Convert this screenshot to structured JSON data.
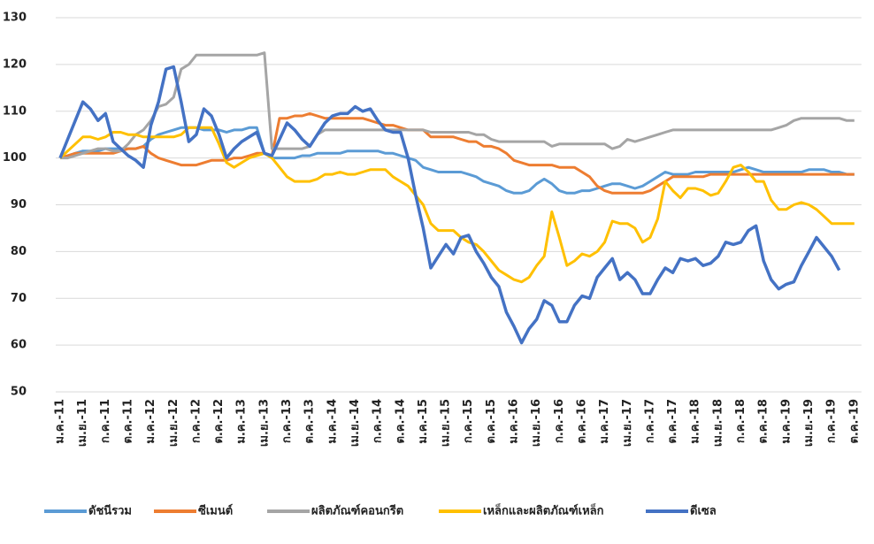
{
  "chart_data": {
    "type": "line",
    "ylim": [
      50,
      130
    ],
    "yticks": [
      50,
      60,
      70,
      80,
      90,
      100,
      110,
      120,
      130
    ],
    "grid": true,
    "legend": "bottom",
    "categories": [
      "ม.ค.-11",
      null,
      null,
      "เม.ย.-11",
      null,
      null,
      "ก.ค.-11",
      null,
      null,
      "ต.ค.-11",
      null,
      null,
      "ม.ค.-12",
      null,
      null,
      "เม.ย.-12",
      null,
      null,
      "ก.ค.-12",
      null,
      null,
      "ต.ค.-12",
      null,
      null,
      "ม.ค.-13",
      null,
      null,
      "เม.ย.-13",
      null,
      null,
      "ก.ค.-13",
      null,
      null,
      "ต.ค.-13",
      null,
      null,
      "ม.ค.-14",
      null,
      null,
      "เม.ย.-14",
      null,
      null,
      "ก.ค.-14",
      null,
      null,
      "ต.ค.-14",
      null,
      null,
      "ม.ค.-15",
      null,
      null,
      "เม.ย.-15",
      null,
      null,
      "ก.ค.-15",
      null,
      null,
      "ต.ค.-15",
      null,
      null,
      "ม.ค.-16",
      null,
      null,
      "เม.ย.-16",
      null,
      null,
      "ก.ค.-16",
      null,
      null,
      "ต.ค.-16",
      null,
      null,
      "ม.ค.-17",
      null,
      null,
      "เม.ย.-17",
      null,
      null,
      "ก.ค.-17",
      null,
      null,
      "ต.ค.-17",
      null,
      null,
      "ม.ค.-18",
      null,
      null,
      "เม.ย.-18",
      null,
      null,
      "ก.ค.-18",
      null,
      null,
      "ต.ค.-18",
      null,
      null,
      "ม.ค.-19",
      null,
      null,
      "เม.ย.-19",
      null,
      null,
      "ก.ค.-19",
      null,
      null,
      "ต.ค.-19"
    ],
    "series": [
      {
        "name": "ดัชนีรวม",
        "color": "#5b9bd5",
        "values": [
          100,
          100.5,
          101,
          101.5,
          101.5,
          101.5,
          102,
          102,
          102,
          102,
          102,
          102.5,
          104,
          105,
          105.5,
          106,
          106.5,
          106.5,
          106.5,
          106,
          106,
          106,
          105.5,
          106,
          106,
          106.5,
          106.5,
          101,
          100,
          100,
          100,
          100,
          100.5,
          100.5,
          101,
          101,
          101,
          101,
          101.5,
          101.5,
          101.5,
          101.5,
          101.5,
          101,
          101,
          100.5,
          100,
          99.5,
          98,
          97.5,
          97,
          97,
          97,
          97,
          96.5,
          96,
          95,
          94.5,
          94,
          93,
          92.5,
          92.5,
          93,
          94.5,
          95.5,
          94.5,
          93,
          92.5,
          92.5,
          93,
          93,
          93.5,
          94,
          94.5,
          94.5,
          94,
          93.5,
          94,
          95,
          96,
          97,
          96.5,
          96.5,
          96.5,
          97,
          97,
          97,
          97,
          97,
          97,
          97.5,
          98,
          97.5,
          97,
          97,
          97,
          97,
          97,
          97,
          97.5,
          97.5,
          97.5,
          97,
          97,
          96.5,
          96.5
        ]
      },
      {
        "name": "ซีเมนต์",
        "color": "#ed7d31",
        "values": [
          100,
          100.5,
          101,
          101,
          101,
          101,
          101,
          101,
          101.5,
          102,
          102,
          102.5,
          101,
          100,
          99.5,
          99,
          98.5,
          98.5,
          98.5,
          99,
          99.5,
          99.5,
          99.5,
          100,
          100,
          100.5,
          101,
          101,
          100.5,
          108.5,
          108.5,
          109,
          109,
          109.5,
          109,
          108.5,
          108.5,
          108.5,
          108.5,
          108.5,
          108.5,
          108,
          107.5,
          107,
          107,
          106.5,
          106,
          106,
          106,
          104.5,
          104.5,
          104.5,
          104.5,
          104,
          103.5,
          103.5,
          102.5,
          102.5,
          102,
          101,
          99.5,
          99,
          98.5,
          98.5,
          98.5,
          98.5,
          98,
          98,
          98,
          97,
          96,
          94,
          93,
          92.5,
          92.5,
          92.5,
          92.5,
          92.5,
          93,
          94,
          95,
          96,
          96,
          96,
          96,
          96,
          96.5,
          96.5,
          96.5,
          96.5,
          96.5,
          96.5,
          96.5,
          96.5,
          96.5,
          96.5,
          96.5,
          96.5,
          96.5,
          96.5,
          96.5,
          96.5,
          96.5,
          96.5,
          96.5,
          96.5
        ]
      },
      {
        "name": "ผลิตภัณฑ์คอนกรีต",
        "color": "#a5a5a5",
        "values": [
          100,
          100,
          100.5,
          101,
          101.5,
          102,
          102,
          101.5,
          101.5,
          103,
          105,
          106,
          108,
          111,
          111.5,
          113,
          119,
          120,
          122,
          122,
          122,
          122,
          122,
          122,
          122,
          122,
          122,
          122.5,
          102,
          102,
          102,
          102,
          102,
          102.5,
          105,
          106,
          106,
          106,
          106,
          106,
          106,
          106,
          106,
          106,
          106,
          106,
          106,
          106,
          106,
          105.5,
          105.5,
          105.5,
          105.5,
          105.5,
          105.5,
          105,
          105,
          104,
          103.5,
          103.5,
          103.5,
          103.5,
          103.5,
          103.5,
          103.5,
          102.5,
          103,
          103,
          103,
          103,
          103,
          103,
          103,
          102,
          102.5,
          104,
          103.5,
          104,
          104.5,
          105,
          105.5,
          106,
          106,
          106,
          106,
          106,
          106,
          106,
          106,
          106,
          106,
          106,
          106,
          106,
          106,
          106.5,
          107,
          108,
          108.5,
          108.5,
          108.5,
          108.5,
          108.5,
          108.5,
          108,
          108
        ]
      },
      {
        "name": "เหล็กและผลิตภัณฑ์เหล็ก",
        "color": "#ffc000",
        "values": [
          100,
          101.5,
          103,
          104.5,
          104.5,
          104,
          104.5,
          105.5,
          105.5,
          105,
          105,
          104.5,
          104.5,
          104.5,
          104.5,
          104.5,
          105,
          106.5,
          106.5,
          106.5,
          106.5,
          103,
          99,
          98,
          99,
          100,
          100.5,
          101,
          100,
          98,
          96,
          95,
          95,
          95,
          95.5,
          96.5,
          96.5,
          97,
          96.5,
          96.5,
          97,
          97.5,
          97.5,
          97.5,
          96,
          95,
          94,
          92,
          90,
          86,
          84.5,
          84.5,
          84.5,
          83,
          82,
          81.5,
          80,
          78,
          76,
          75,
          74,
          73.5,
          74.5,
          77,
          79,
          88.5,
          83,
          77,
          78,
          79.5,
          79,
          80,
          82,
          86.5,
          86,
          86,
          85,
          82,
          83,
          87,
          95,
          93,
          91.5,
          93.5,
          93.5,
          93,
          92,
          92.5,
          95,
          98,
          98.5,
          97,
          95,
          95,
          91,
          89,
          89,
          90,
          90.5,
          90,
          89,
          87.5,
          86,
          86,
          86,
          86
        ]
      },
      {
        "name": "ดีเซล",
        "color": "#4472c4",
        "values": [
          100,
          104,
          108,
          112,
          110.5,
          108,
          109.5,
          103.5,
          102,
          100.5,
          99.5,
          98,
          107,
          112,
          119,
          119.5,
          112,
          103.5,
          105,
          110.5,
          109,
          105,
          100,
          102,
          103.5,
          104.5,
          105.5,
          101,
          100.5,
          104,
          107.5,
          106,
          104,
          102.5,
          105,
          107.5,
          109,
          109.5,
          109.5,
          111,
          110,
          110.5,
          108,
          106,
          105.5,
          105.5,
          100,
          92,
          85,
          76.5,
          79,
          81.5,
          79.5,
          83,
          83.5,
          80,
          77.5,
          74.5,
          72.5,
          67,
          64,
          60.5,
          63.5,
          65.5,
          69.5,
          68.5,
          65,
          65,
          68.5,
          70.5,
          70,
          74.5,
          76.5,
          78.5,
          74,
          75.5,
          74,
          71,
          71,
          74,
          76.5,
          75.5,
          78.5,
          78,
          78.5,
          77,
          77.5,
          79,
          82,
          81.5,
          82,
          84.5,
          85.5,
          78,
          74,
          72,
          73,
          73.5,
          77,
          80,
          83,
          81,
          79,
          76,
          null,
          null
        ]
      }
    ]
  }
}
